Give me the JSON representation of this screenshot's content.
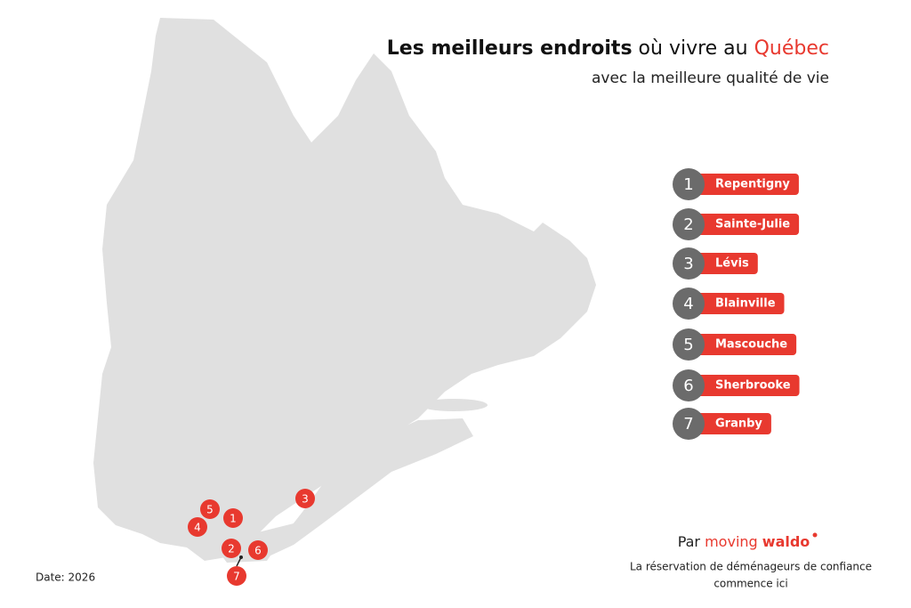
{
  "header": {
    "title_bold": "Les meilleurs endroits",
    "title_mid": "où vivre au",
    "title_red": "Québec",
    "subtitle": "avec la meilleure qualité de vie"
  },
  "ranking": [
    {
      "rank": 1,
      "city": "Repentigny"
    },
    {
      "rank": 2,
      "city": "Sainte-Julie"
    },
    {
      "rank": 3,
      "city": "Lévis"
    },
    {
      "rank": 4,
      "city": "Blainville"
    },
    {
      "rank": 5,
      "city": "Mascouche"
    },
    {
      "rank": 6,
      "city": "Sherbrooke"
    },
    {
      "rank": 7,
      "city": "Granby"
    }
  ],
  "footer": {
    "date": "Date: 2026",
    "brand_prefix": "Par",
    "brand_moving": "moving",
    "brand_waldo": "waldo",
    "tagline_line1": "La réservation de déménageurs de confiance",
    "tagline_line2": "commence ici"
  }
}
